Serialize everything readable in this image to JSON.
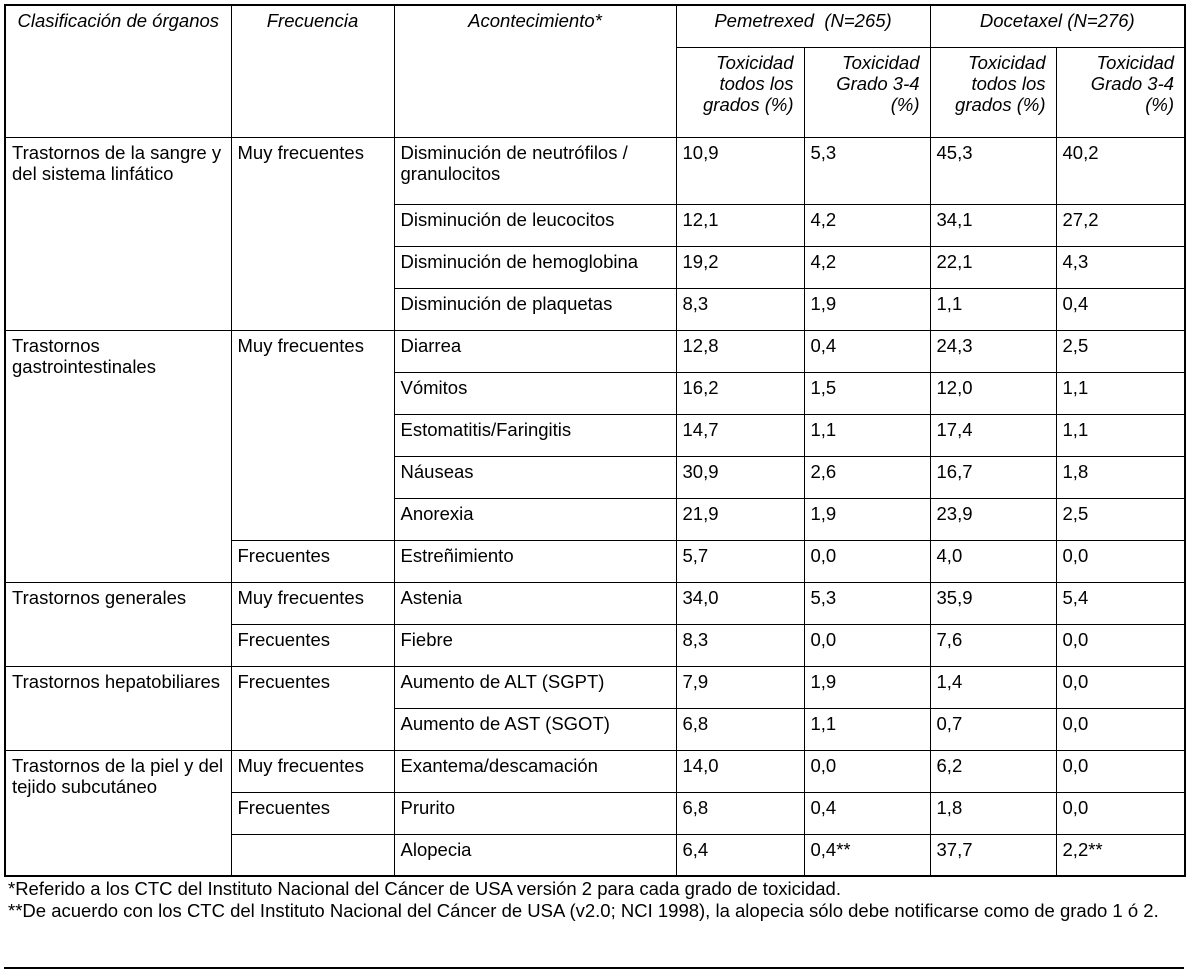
{
  "table": {
    "header": [
      "Clasificación de órganos",
      "Frecuencia",
      "Acontecimiento*",
      "Pemetrexed  (N=265)",
      "Docetaxel (N=276)"
    ],
    "subheader": [
      "Toxicidad todos los grados (%)",
      "Toxicidad Grado 3-4 (%)",
      "Toxicidad todos los grados (%)",
      "Toxicidad Grado 3-4 (%)"
    ],
    "groups": [
      {
        "organ": "Trastornos de la sangre y del sistema linfático",
        "frequencies": [
          {
            "label": "Muy frecuentes",
            "events": [
              {
                "name": "Disminución de neutrófilos / granulocitos",
                "values": [
                  "10,9",
                  "5,3",
                  "45,3",
                  "40,2"
                ]
              },
              {
                "name": "Disminución de leucocitos",
                "values": [
                  "12,1",
                  "4,2",
                  "34,1",
                  "27,2"
                ]
              },
              {
                "name": "Disminución de hemoglobina",
                "values": [
                  "19,2",
                  "4,2",
                  "22,1",
                  "4,3"
                ]
              },
              {
                "name": "Disminución de plaquetas",
                "values": [
                  "8,3",
                  "1,9",
                  "1,1",
                  "0,4"
                ]
              }
            ]
          }
        ]
      },
      {
        "organ": "Trastornos gastrointestinales",
        "frequencies": [
          {
            "label": "Muy frecuentes",
            "events": [
              {
                "name": "Diarrea",
                "values": [
                  "12,8",
                  "0,4",
                  "24,3",
                  "2,5"
                ]
              },
              {
                "name": "Vómitos",
                "values": [
                  "16,2",
                  "1,5",
                  "12,0",
                  "1,1"
                ]
              },
              {
                "name": "Estomatitis/Faringitis",
                "values": [
                  "14,7",
                  "1,1",
                  "17,4",
                  "1,1"
                ]
              },
              {
                "name": "Náuseas",
                "values": [
                  "30,9",
                  "2,6",
                  "16,7",
                  "1,8"
                ]
              },
              {
                "name": "Anorexia",
                "values": [
                  "21,9",
                  "1,9",
                  "23,9",
                  "2,5"
                ]
              }
            ]
          },
          {
            "label": "Frecuentes",
            "events": [
              {
                "name": "Estreñimiento",
                "values": [
                  "5,7",
                  "0,0",
                  "4,0",
                  "0,0"
                ]
              }
            ]
          }
        ]
      },
      {
        "organ": "Trastornos generales",
        "frequencies": [
          {
            "label": "Muy frecuentes",
            "events": [
              {
                "name": "Astenia",
                "values": [
                  "34,0",
                  "5,3",
                  "35,9",
                  "5,4"
                ]
              }
            ]
          },
          {
            "label": "Frecuentes",
            "events": [
              {
                "name": "Fiebre",
                "values": [
                  "8,3",
                  "0,0",
                  "7,6",
                  "0,0"
                ]
              }
            ]
          }
        ]
      },
      {
        "organ": "Trastornos hepatobiliares",
        "frequencies": [
          {
            "label": "Frecuentes",
            "events": [
              {
                "name": "Aumento de ALT (SGPT)",
                "values": [
                  "7,9",
                  "1,9",
                  "1,4",
                  "0,0"
                ]
              },
              {
                "name": "Aumento de AST (SGOT)",
                "values": [
                  "6,8",
                  "1,1",
                  "0,7",
                  "0,0"
                ]
              }
            ]
          }
        ]
      },
      {
        "organ": "Trastornos de la piel y del tejido subcutáneo",
        "frequencies": [
          {
            "label": "Muy frecuentes",
            "events": [
              {
                "name": "Exantema/descamación",
                "values": [
                  "14,0",
                  "0,0",
                  "6,2",
                  "0,0"
                ]
              }
            ]
          },
          {
            "label": "Frecuentes",
            "events": [
              {
                "name": "Prurito",
                "values": [
                  "6,8",
                  "0,4",
                  "1,8",
                  "0,0"
                ]
              }
            ]
          },
          {
            "label": null,
            "events": [
              {
                "name": "Alopecia",
                "values": [
                  "6,4",
                  "0,4**",
                  "37,7",
                  "2,2**"
                ]
              }
            ]
          }
        ]
      }
    ]
  },
  "footnotes": [
    "*Referido a los CTC del Instituto Nacional del Cáncer de USA versión 2 para cada grado de toxicidad.",
    "**De acuerdo con los CTC del Instituto Nacional del Cáncer de USA (v2.0; NCI 1998), la alopecia sólo debe notificarse como de grado 1 ó 2."
  ]
}
